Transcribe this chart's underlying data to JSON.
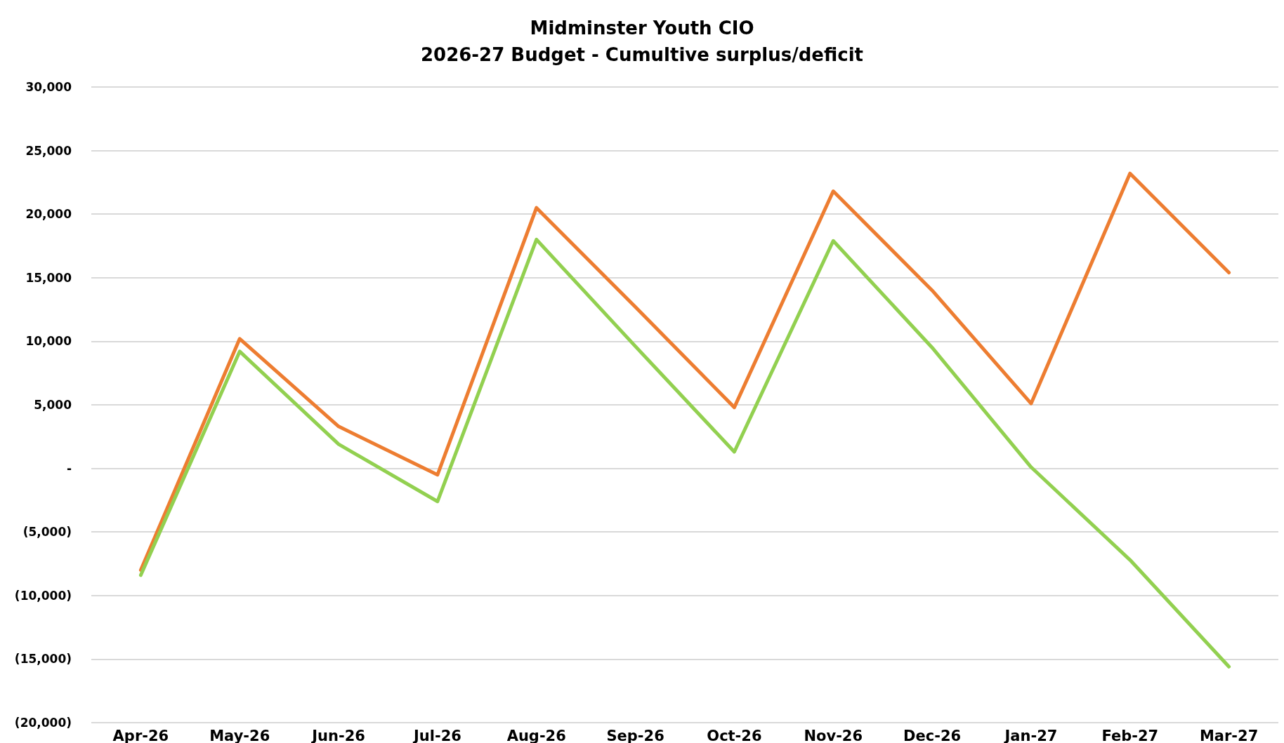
{
  "chart_data": {
    "type": "line",
    "title": "Midminster Youth CIO",
    "subtitle": "2026-27 Budget - Cumultive surplus/deficit",
    "categories": [
      "Apr-26",
      "May-26",
      "Jun-26",
      "Jul-26",
      "Aug-26",
      "Sep-26",
      "Oct-26",
      "Nov-26",
      "Dec-26",
      "Jan-27",
      "Feb-27",
      "Mar-27"
    ],
    "series": [
      {
        "color": "#ed7d31",
        "values": [
          -8000,
          10200,
          3300,
          -500,
          20500,
          12700,
          4800,
          21800,
          14000,
          5100,
          23200,
          15400
        ]
      },
      {
        "color": "#92d050",
        "values": [
          -8400,
          9200,
          1900,
          -2600,
          18000,
          9600,
          1300,
          17900,
          9500,
          100,
          -7200,
          -15600
        ]
      }
    ],
    "ylim": [
      -20000,
      30000
    ],
    "yticks": [
      {
        "value": -20000,
        "label": "(20,000)"
      },
      {
        "value": -15000,
        "label": "(15,000)"
      },
      {
        "value": -10000,
        "label": "(10,000)"
      },
      {
        "value": -5000,
        "label": "(5,000)"
      },
      {
        "value": 0,
        "label": "-"
      },
      {
        "value": 5000,
        "label": "5,000"
      },
      {
        "value": 10000,
        "label": "10,000"
      },
      {
        "value": 15000,
        "label": "15,000"
      },
      {
        "value": 20000,
        "label": "20,000"
      },
      {
        "value": 25000,
        "label": "25,000"
      },
      {
        "value": 30000,
        "label": "30,000"
      }
    ],
    "grid": "y",
    "marker": "none",
    "line_style": "solid"
  }
}
